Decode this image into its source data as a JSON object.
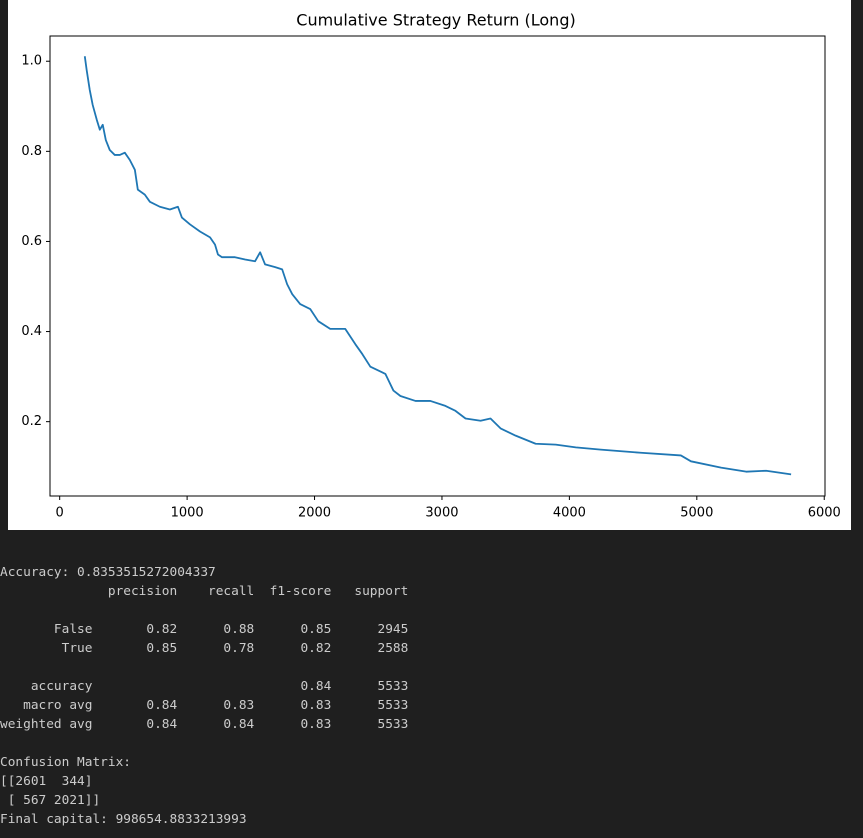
{
  "chart_data": {
    "type": "line",
    "title": "Cumulative Strategy Return (Long)",
    "series": [
      {
        "color": "#1f77b4",
        "x": [
          197,
          212,
          236,
          259,
          291,
          315,
          338,
          362,
          393,
          432,
          472,
          511,
          550,
          590,
          613,
          668,
          708,
          786,
          865,
          928,
          959,
          1022,
          1101,
          1180,
          1219,
          1242,
          1274,
          1376,
          1455,
          1533,
          1573,
          1612,
          1691,
          1746,
          1785,
          1825,
          1887,
          1966,
          2029,
          2123,
          2241,
          2320,
          2375,
          2438,
          2556,
          2619,
          2674,
          2792,
          2909,
          3027,
          3106,
          3185,
          3303,
          3381,
          3460,
          3578,
          3735,
          3893,
          4050,
          4246,
          4561,
          4875,
          4954,
          5190,
          5387,
          5544,
          5740
        ],
        "values": [
          1.011,
          0.98,
          0.936,
          0.903,
          0.87,
          0.848,
          0.859,
          0.825,
          0.803,
          0.792,
          0.792,
          0.797,
          0.781,
          0.759,
          0.715,
          0.704,
          0.688,
          0.677,
          0.671,
          0.677,
          0.653,
          0.638,
          0.622,
          0.609,
          0.593,
          0.571,
          0.565,
          0.565,
          0.56,
          0.556,
          0.576,
          0.549,
          0.543,
          0.538,
          0.505,
          0.483,
          0.461,
          0.45,
          0.423,
          0.406,
          0.406,
          0.372,
          0.35,
          0.322,
          0.306,
          0.269,
          0.257,
          0.246,
          0.246,
          0.235,
          0.224,
          0.207,
          0.202,
          0.207,
          0.185,
          0.169,
          0.151,
          0.149,
          0.143,
          0.138,
          0.131,
          0.125,
          0.112,
          0.098,
          0.089,
          0.091,
          0.083
        ]
      }
    ],
    "xlim": [
      -76,
      6006
    ],
    "xticks": [
      0,
      1000,
      2000,
      3000,
      4000,
      5000,
      6000
    ],
    "ylim": [
      0.035,
      1.056
    ],
    "yticks": [
      {
        "value": 0.2,
        "label": "0.2"
      },
      {
        "value": 0.4,
        "label": "0.4"
      },
      0.6,
      0.8,
      {
        "value": 1,
        "label": "1.0"
      }
    ]
  },
  "output": {
    "lines": [
      "Accuracy: 0.8353515272004337",
      "              precision    recall  f1-score   support",
      "       False       0.82      0.88      0.85      2945",
      "        True       0.85      0.78      0.82      2588",
      "    accuracy                           0.84      5533",
      "   macro avg       0.84      0.83      0.83      5533",
      "weighted avg       0.84      0.84      0.83      5533",
      "Confusion Matrix:",
      "[[2601  344]",
      " [ 567 2021]]",
      "Final capital: 998654.8833213993"
    ]
  }
}
